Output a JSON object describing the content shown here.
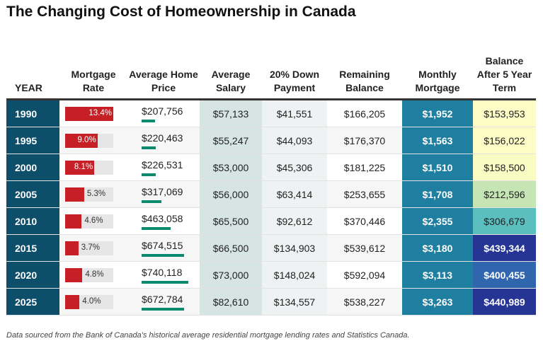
{
  "title": "The Changing Cost of Homeownership in Canada",
  "chart_data": {
    "type": "table",
    "title": "The Changing Cost of Homeownership in Canada",
    "columns": [
      "YEAR",
      "Mortgage Rate",
      "Average Home Price",
      "Average Salary",
      "20% Down Payment",
      "Remaining Balance",
      "Monthly Mortgage",
      "Balance After 5 Year Term"
    ],
    "rows": [
      {
        "year": "1990",
        "rate": 13.4,
        "rate_label": "13.4%",
        "price": 207756,
        "price_label": "$207,756",
        "salary": "$57,133",
        "down": "$41,551",
        "remaining": "$166,205",
        "monthly": "$1,952",
        "balance": "$153,953",
        "balance_color": "#fdfcc6"
      },
      {
        "year": "1995",
        "rate": 9.0,
        "rate_label": "9.0%",
        "price": 220463,
        "price_label": "$220,463",
        "salary": "$55,247",
        "down": "$44,093",
        "remaining": "$176,370",
        "monthly": "$1,563",
        "balance": "$156,022",
        "balance_color": "#fdfcc6"
      },
      {
        "year": "2000",
        "rate": 8.1,
        "rate_label": "8.1%",
        "price": 226531,
        "price_label": "$226,531",
        "salary": "$53,000",
        "down": "$45,306",
        "remaining": "$181,225",
        "monthly": "$1,510",
        "balance": "$158,500",
        "balance_color": "#fbfbc4"
      },
      {
        "year": "2005",
        "rate": 5.3,
        "rate_label": "5.3%",
        "price": 317069,
        "price_label": "$317,069",
        "salary": "$56,000",
        "down": "$63,414",
        "remaining": "$253,655",
        "monthly": "$1,708",
        "balance": "$212,596",
        "balance_color": "#c5e6b4"
      },
      {
        "year": "2010",
        "rate": 4.6,
        "rate_label": "4.6%",
        "price": 463058,
        "price_label": "$463,058",
        "salary": "$65,500",
        "down": "$92,612",
        "remaining": "$370,446",
        "monthly": "$2,355",
        "balance": "$306,679",
        "balance_color": "#5bbfc0"
      },
      {
        "year": "2015",
        "rate": 3.7,
        "rate_label": "3.7%",
        "price": 674515,
        "price_label": "$674,515",
        "salary": "$66,500",
        "down": "$134,903",
        "remaining": "$539,612",
        "monthly": "$3,180",
        "balance": "$439,344",
        "balance_color": "#263494"
      },
      {
        "year": "2020",
        "rate": 4.8,
        "rate_label": "4.8%",
        "price": 740118,
        "price_label": "$740,118",
        "salary": "$73,000",
        "down": "$148,024",
        "remaining": "$592,094",
        "monthly": "$3,113",
        "balance": "$400,455",
        "balance_color": "#2f66ae"
      },
      {
        "year": "2025",
        "rate": 4.0,
        "rate_label": "4.0%",
        "price": 672784,
        "price_label": "$672,784",
        "salary": "$82,610",
        "down": "$134,557",
        "remaining": "$538,227",
        "monthly": "$3,263",
        "balance": "$440,989",
        "balance_color": "#263494"
      }
    ]
  },
  "note": "Data sourced from the Bank of Canada's historical average residential mortgage lending rates and Statistics Canada."
}
